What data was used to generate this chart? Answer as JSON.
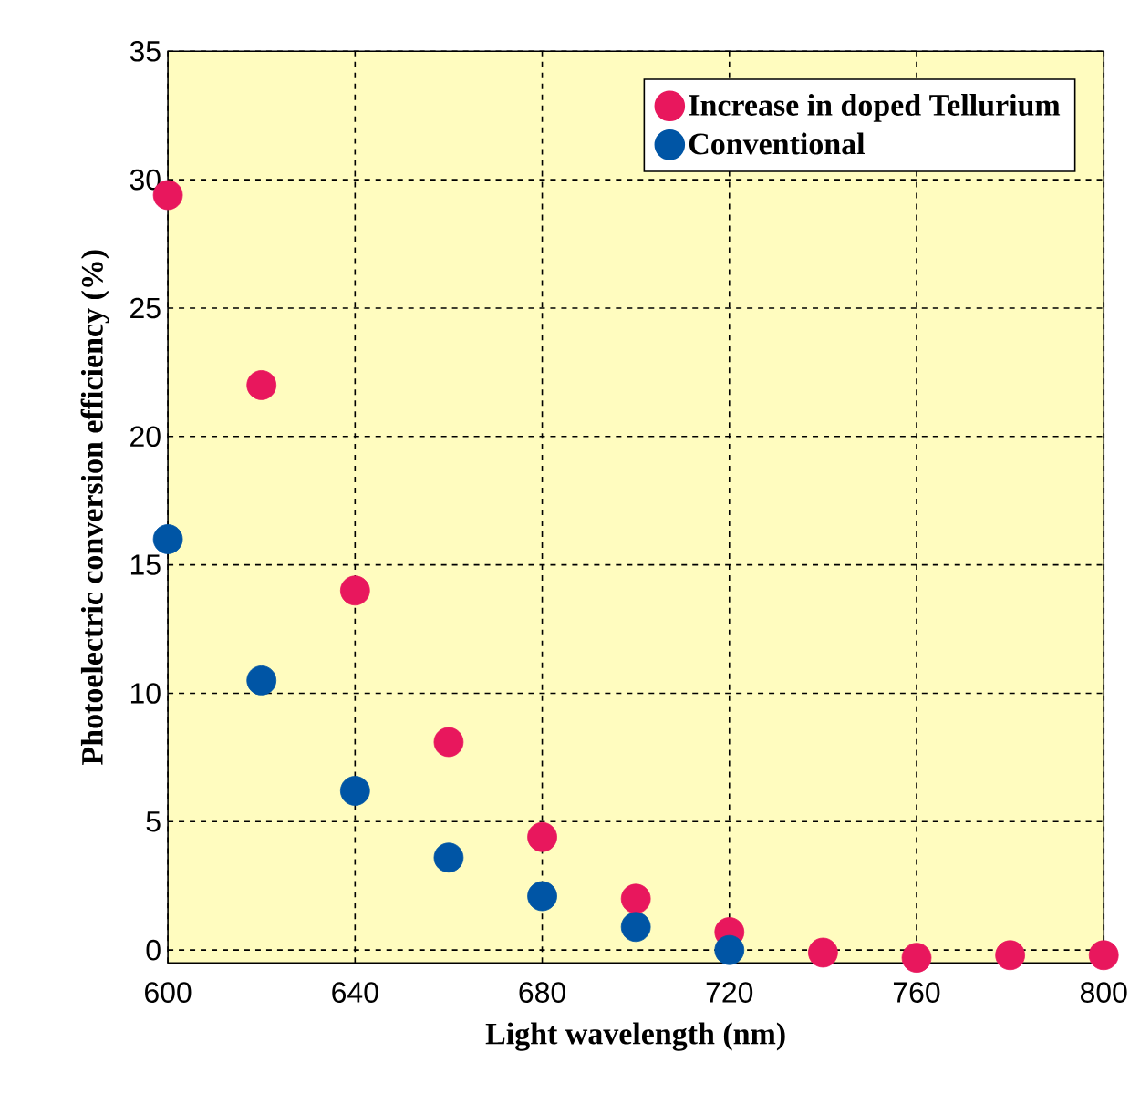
{
  "chart_data": {
    "type": "scatter",
    "xlabel": "Light wavelength (nm)",
    "ylabel": "Photoelectric conversion efficiency (%)",
    "x": [
      600,
      620,
      640,
      660,
      680,
      700,
      720,
      740,
      760,
      780,
      800
    ],
    "series": [
      {
        "name": "Increase in doped Tellurium",
        "color": "#e8175d",
        "values": [
          29.4,
          22.0,
          14.0,
          8.1,
          4.4,
          2.0,
          0.7,
          -0.1,
          -0.3,
          -0.2,
          -0.2
        ]
      },
      {
        "name": "Conventional",
        "color": "#0055a5",
        "values": [
          16.0,
          10.5,
          6.2,
          3.6,
          2.1,
          0.9,
          0.0,
          null,
          null,
          null,
          null
        ]
      }
    ],
    "xlim": [
      600,
      800
    ],
    "ylim": [
      -0.5,
      35
    ],
    "xticks": [
      600,
      640,
      680,
      720,
      760,
      800
    ],
    "yticks": [
      0,
      5,
      10,
      15,
      20,
      25,
      30,
      35
    ],
    "grid": true,
    "legend": "top right"
  }
}
